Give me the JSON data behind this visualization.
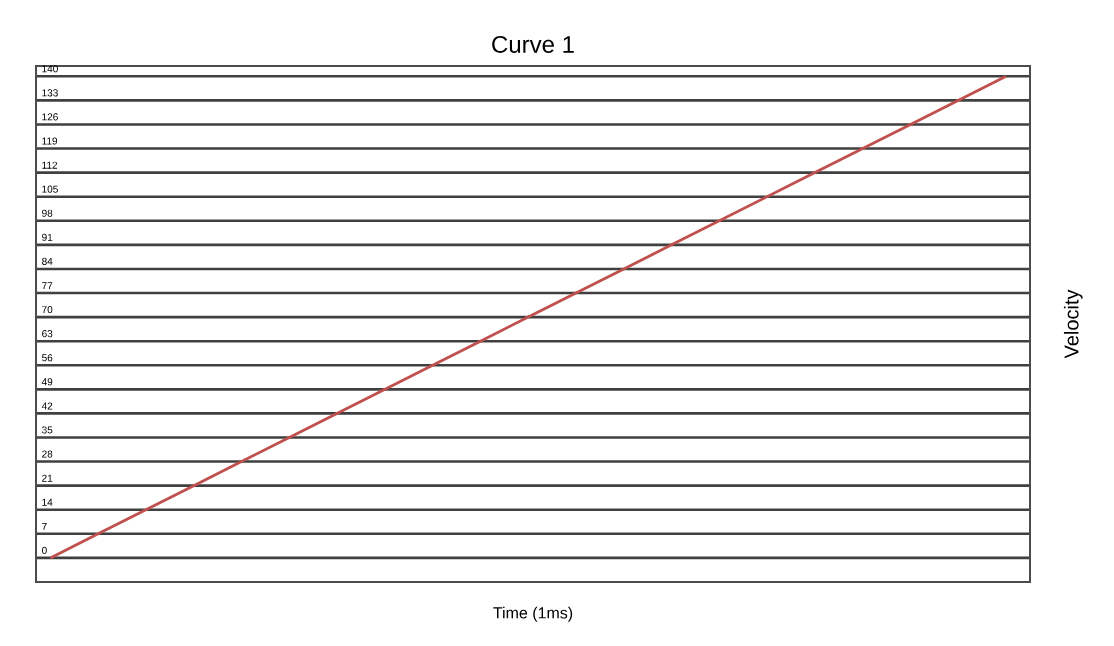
{
  "chart_data": {
    "type": "line",
    "title": "Curve 1",
    "xlabel": "Time (1ms)",
    "ylabel": "Velocity",
    "categories": [
      null,
      null,
      null,
      null,
      null,
      null,
      null,
      null,
      null,
      null,
      null,
      null,
      null,
      null,
      null,
      null,
      null,
      null,
      null,
      null,
      null
    ],
    "series": [
      {
        "color": "#c0504d",
        "values": [
          0,
          7,
          14,
          21,
          28,
          35,
          42,
          49,
          56,
          63,
          70,
          77,
          84,
          91,
          98,
          105,
          112,
          119,
          126,
          133,
          140
        ]
      }
    ],
    "ylim": [
      -7,
      143
    ],
    "yticks": [
      0,
      7,
      14,
      21,
      28,
      35,
      42,
      49,
      56,
      63,
      70,
      77,
      84,
      91,
      98,
      105,
      112,
      119,
      126,
      133,
      140
    ],
    "grid": "y",
    "tick_labels": "y",
    "marker": "none",
    "line_style": "solid"
  }
}
